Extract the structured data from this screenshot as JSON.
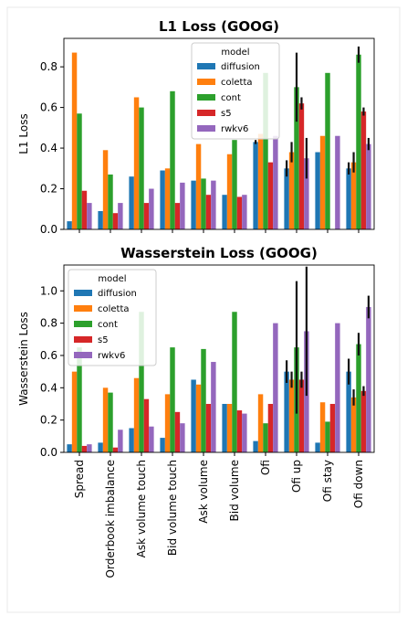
{
  "chart_data": [
    {
      "type": "bar",
      "title": "L1 Loss (GOOG)",
      "ylabel": "L1 Loss",
      "legend_title": "model",
      "legend": "upper center",
      "categories": [
        "Spread",
        "Orderbook imbalance",
        "Ask volume touch",
        "Bid volume touch",
        "Ask volume",
        "Bid volume",
        "Ofi",
        "Ofi up",
        "Ofi stay",
        "Ofi down"
      ],
      "ylim": [
        0,
        0.94
      ],
      "yticks": [
        {
          "value": 0,
          "label": "0.0"
        },
        0.2,
        0.4,
        0.6,
        0.8
      ],
      "series": [
        {
          "name": "diffusion",
          "color": "#1f77b4",
          "values": [
            0.04,
            0.09,
            0.26,
            0.29,
            0.24,
            0.17,
            0.43,
            0.3,
            0.38,
            0.3
          ],
          "errors": [
            null,
            null,
            null,
            null,
            null,
            null,
            0.01,
            0.04,
            null,
            0.03
          ]
        },
        {
          "name": "coletta",
          "color": "#ff7f0e",
          "values": [
            0.87,
            0.39,
            0.65,
            0.3,
            0.42,
            0.37,
            0.47,
            0.38,
            0.46,
            0.33
          ],
          "errors": [
            null,
            null,
            null,
            null,
            null,
            null,
            null,
            0.05,
            null,
            0.05
          ]
        },
        {
          "name": "cont",
          "color": "#2ca02c",
          "values": [
            0.57,
            0.27,
            0.6,
            0.68,
            0.25,
            0.44,
            0.77,
            0.7,
            0.77,
            0.86
          ],
          "errors": [
            null,
            null,
            null,
            null,
            null,
            null,
            null,
            0.17,
            null,
            0.04
          ]
        },
        {
          "name": "s5",
          "color": "#d62728",
          "values": [
            0.19,
            0.08,
            0.13,
            0.13,
            0.17,
            0.16,
            0.33,
            0.62,
            null,
            0.58
          ],
          "errors": [
            null,
            null,
            null,
            null,
            null,
            null,
            null,
            0.03,
            null,
            0.02
          ]
        },
        {
          "name": "rwkv6",
          "color": "#9467bd",
          "values": [
            0.13,
            0.13,
            0.2,
            0.23,
            0.24,
            0.17,
            0.46,
            0.35,
            0.46,
            0.42
          ],
          "errors": [
            null,
            null,
            null,
            null,
            null,
            null,
            null,
            0.1,
            null,
            0.03
          ]
        }
      ]
    },
    {
      "type": "bar",
      "title": "Wasserstein Loss (GOOG)",
      "ylabel": "Wasserstein Loss",
      "legend_title": "model",
      "legend": "upper left",
      "categories": [
        "Spread",
        "Orderbook imbalance",
        "Ask volume touch",
        "Bid volume touch",
        "Ask volume",
        "Bid volume",
        "Ofi",
        "Ofi up",
        "Ofi stay",
        "Ofi down"
      ],
      "ylim": [
        0,
        1.16
      ],
      "yticks": [
        {
          "value": 0,
          "label": "0.0"
        },
        0.2,
        0.4,
        0.6,
        0.8,
        {
          "value": 1,
          "label": "1.0"
        }
      ],
      "series": [
        {
          "name": "diffusion",
          "color": "#1f77b4",
          "values": [
            0.05,
            0.06,
            0.15,
            0.09,
            0.45,
            0.3,
            0.07,
            0.5,
            0.06,
            0.5
          ],
          "errors": [
            null,
            null,
            null,
            null,
            null,
            null,
            null,
            0.07,
            null,
            0.08
          ]
        },
        {
          "name": "coletta",
          "color": "#ff7f0e",
          "values": [
            0.5,
            0.4,
            0.46,
            0.36,
            0.42,
            0.3,
            0.36,
            0.45,
            0.31,
            0.34
          ],
          "errors": [
            null,
            null,
            null,
            null,
            null,
            null,
            null,
            0.05,
            null,
            0.05
          ]
        },
        {
          "name": "cont",
          "color": "#2ca02c",
          "values": [
            0.65,
            0.37,
            0.87,
            0.65,
            0.64,
            0.87,
            0.18,
            0.65,
            0.19,
            0.67
          ],
          "errors": [
            null,
            null,
            null,
            null,
            null,
            null,
            null,
            0.41,
            null,
            0.07
          ]
        },
        {
          "name": "s5",
          "color": "#d62728",
          "values": [
            0.04,
            0.03,
            0.33,
            0.25,
            0.3,
            0.26,
            0.3,
            0.45,
            0.3,
            0.38
          ],
          "errors": [
            null,
            null,
            null,
            null,
            null,
            null,
            null,
            0.05,
            null,
            0.03
          ]
        },
        {
          "name": "rwkv6",
          "color": "#9467bd",
          "values": [
            0.05,
            0.14,
            0.16,
            0.18,
            0.56,
            0.24,
            0.8,
            0.75,
            0.8,
            0.9
          ],
          "errors": [
            null,
            null,
            null,
            null,
            null,
            null,
            null,
            0.4,
            null,
            0.07
          ]
        }
      ]
    }
  ]
}
